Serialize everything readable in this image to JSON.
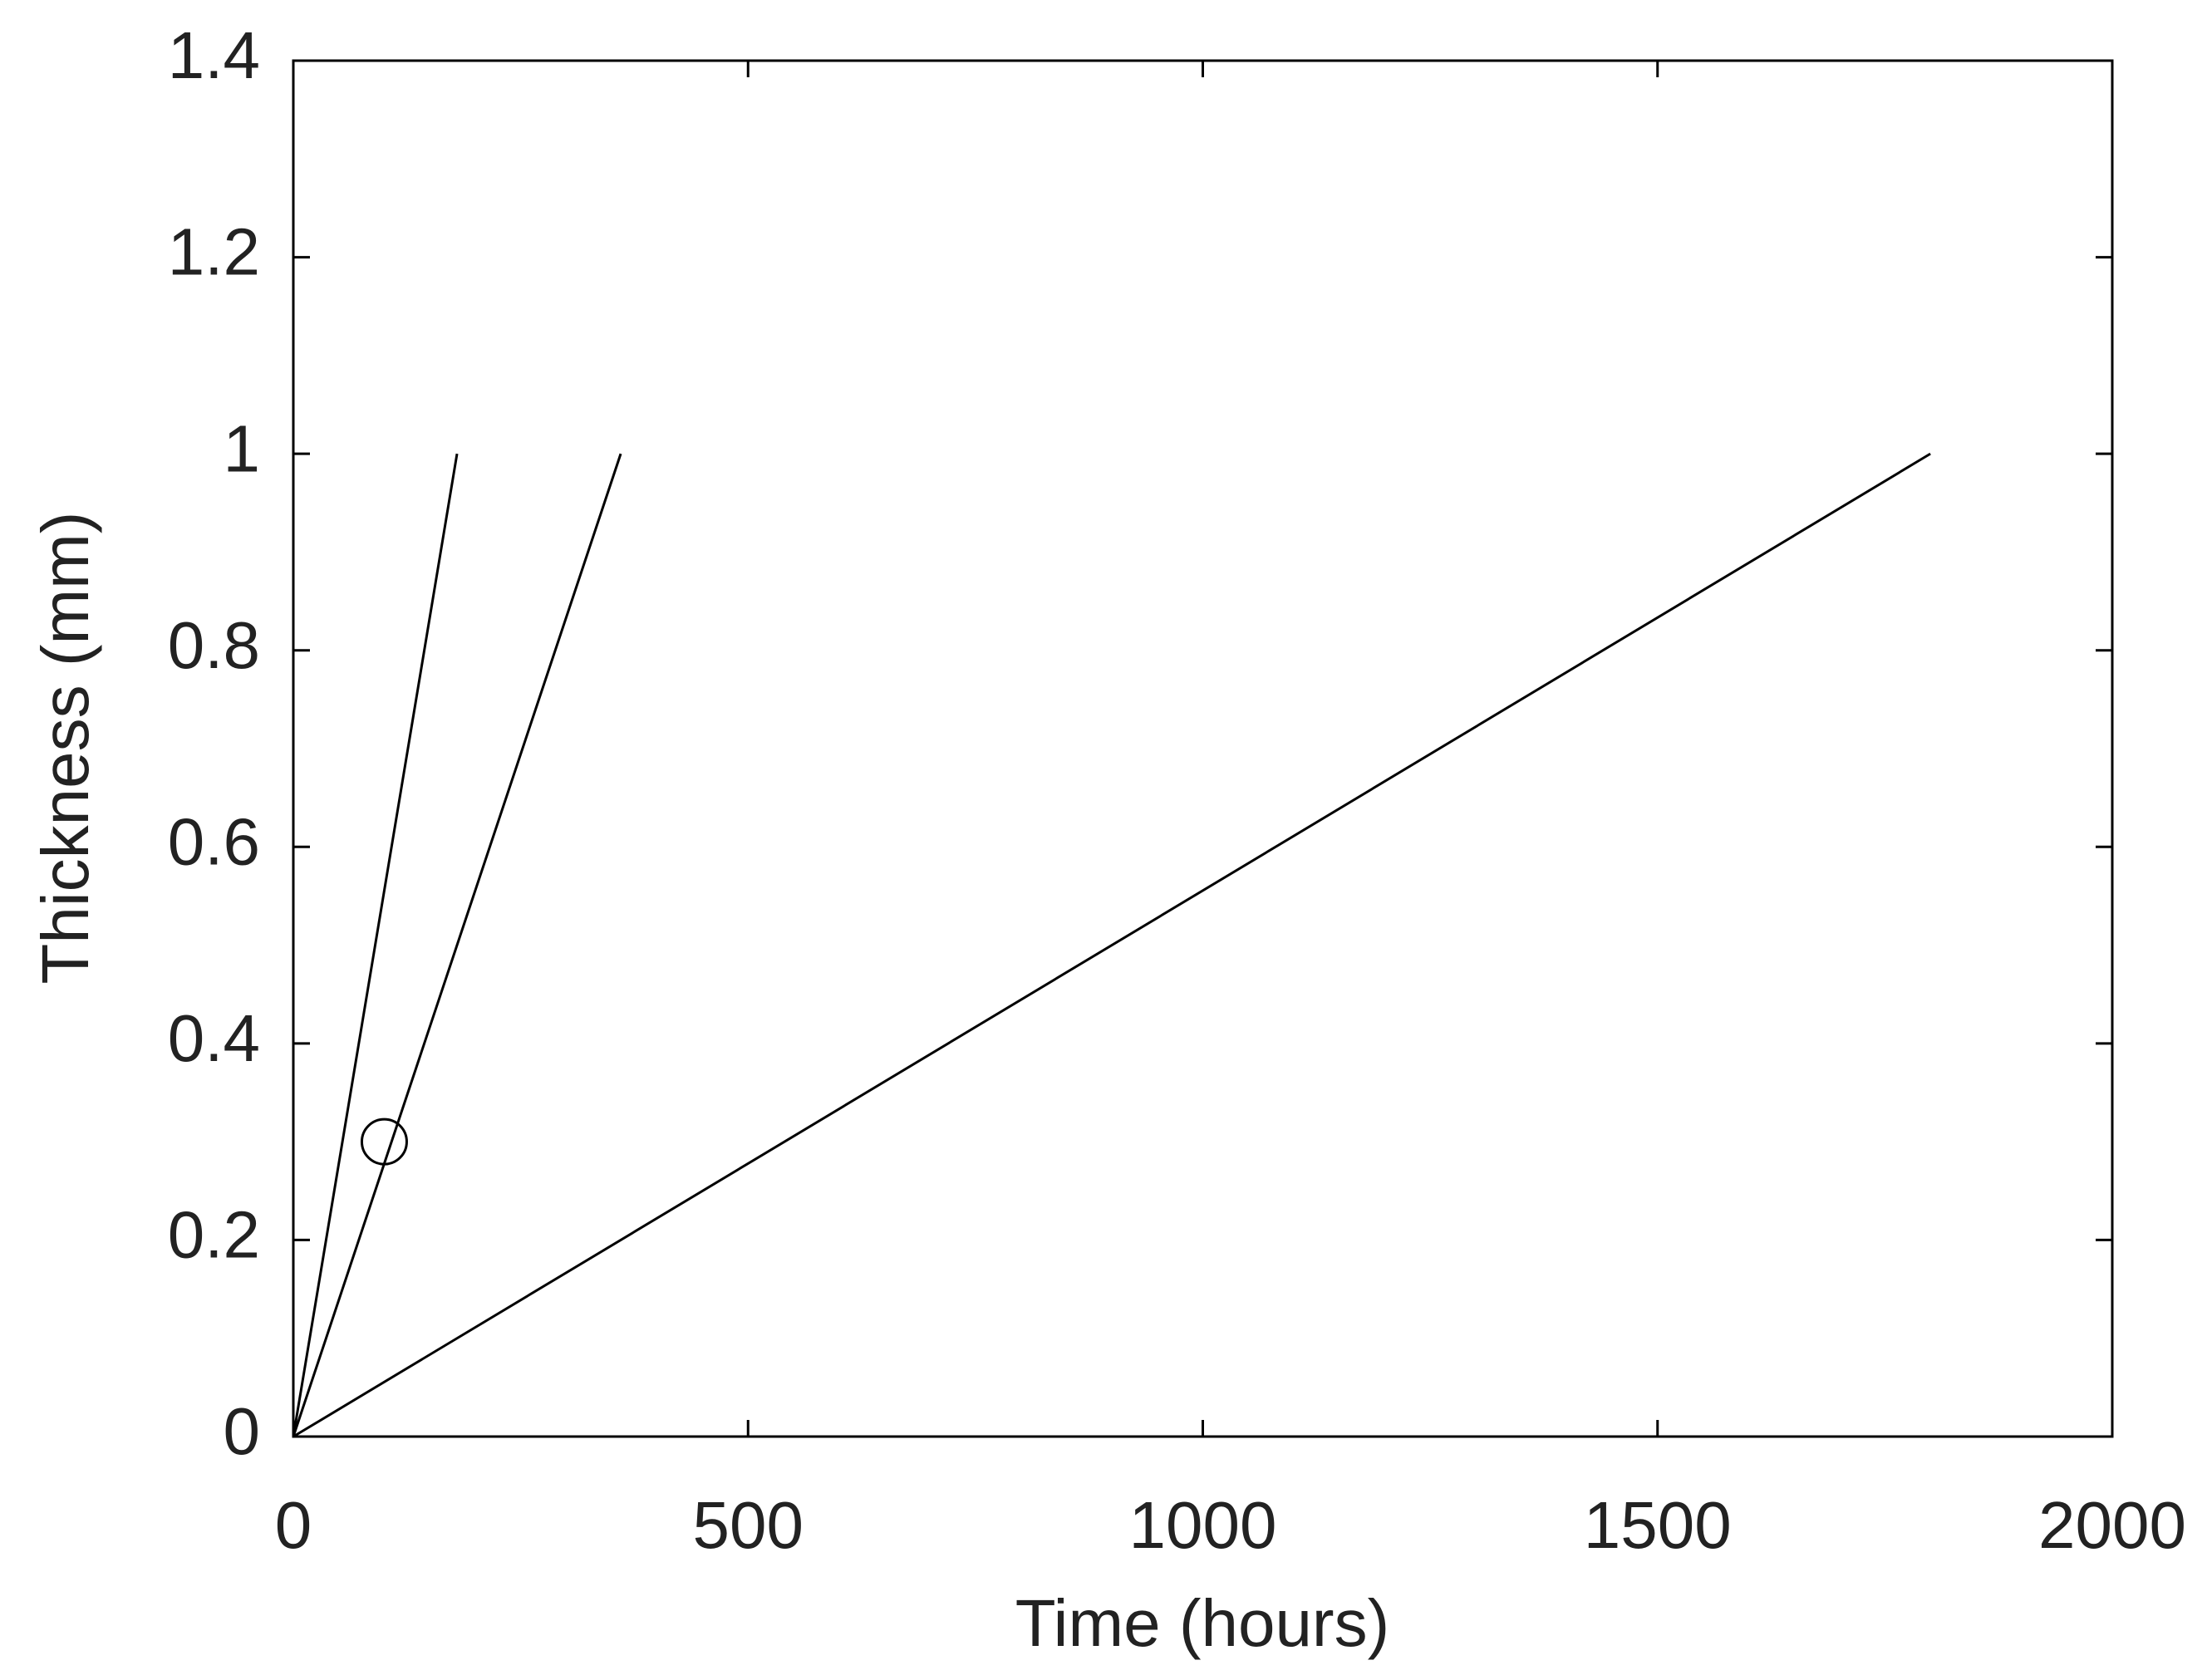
{
  "chart_data": {
    "type": "line",
    "xlabel": "Time (hours)",
    "ylabel": "Thickness (mm)",
    "xlim": [
      0,
      2000
    ],
    "xticks": [
      0,
      500,
      1000,
      1500,
      2000
    ],
    "ylim": [
      0,
      1.4
    ],
    "yticks": [
      0,
      0.2,
      0.4,
      0.6,
      0.8,
      1,
      1.2,
      1.4
    ],
    "grid": false,
    "series": [
      {
        "x": [
          0,
          180
        ],
        "values": [
          0,
          1
        ],
        "color": "#000000"
      },
      {
        "x": [
          0,
          360
        ],
        "values": [
          0,
          1
        ],
        "color": "#000000"
      },
      {
        "x": [
          0,
          1800
        ],
        "values": [
          0,
          1
        ],
        "color": "#000000"
      },
      {
        "x": [
          100
        ],
        "values": [
          0.3
        ],
        "color": "#000000",
        "marker": "circle"
      }
    ]
  }
}
